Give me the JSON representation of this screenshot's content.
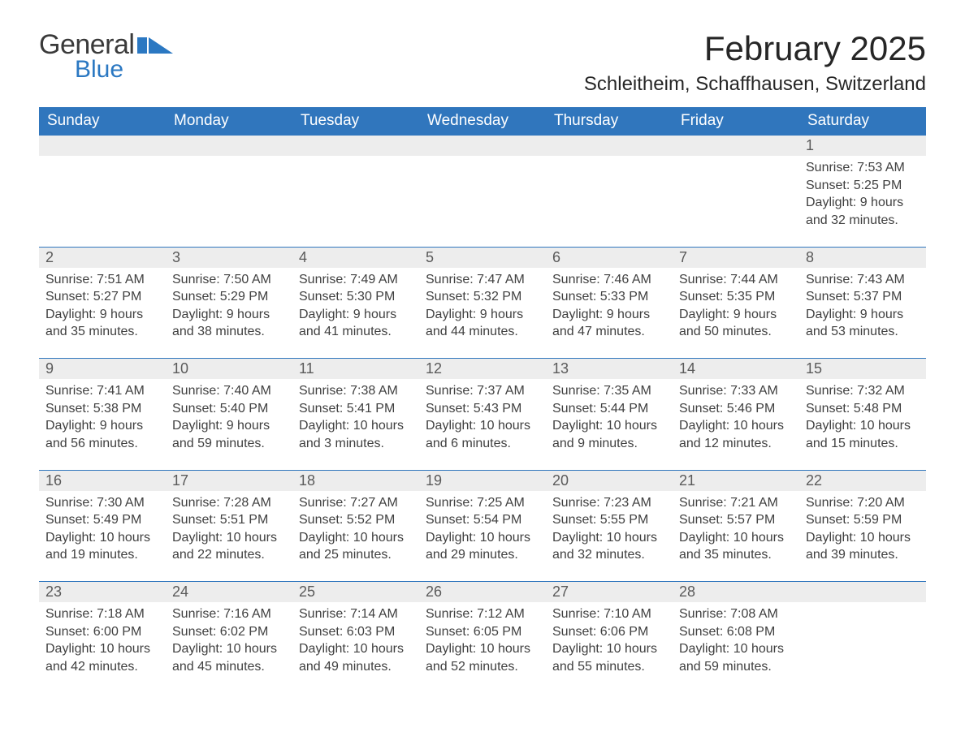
{
  "brand": {
    "general": "General",
    "blue": "Blue",
    "mark_color": "#2b78c2"
  },
  "title": "February 2025",
  "location": "Schleitheim, Schaffhausen, Switzerland",
  "colors": {
    "header_bg": "#3076bd",
    "header_fg": "#ffffff",
    "daynum_bg": "#ededed",
    "daynum_fg": "#5a5a5a",
    "text": "#404040",
    "rule": "#3076bd"
  },
  "typography": {
    "title_fontsize": 42,
    "location_fontsize": 24,
    "dow_fontsize": 19,
    "cell_fontsize": 16
  },
  "days_of_week": [
    "Sunday",
    "Monday",
    "Tuesday",
    "Wednesday",
    "Thursday",
    "Friday",
    "Saturday"
  ],
  "labels": {
    "sunrise": "Sunrise:",
    "sunset": "Sunset:",
    "daylight": "Daylight:"
  },
  "weeks": [
    [
      null,
      null,
      null,
      null,
      null,
      null,
      {
        "n": "1",
        "sunrise": "7:53 AM",
        "sunset": "5:25 PM",
        "dl1": "9 hours",
        "dl2": "and 32 minutes."
      }
    ],
    [
      {
        "n": "2",
        "sunrise": "7:51 AM",
        "sunset": "5:27 PM",
        "dl1": "9 hours",
        "dl2": "and 35 minutes."
      },
      {
        "n": "3",
        "sunrise": "7:50 AM",
        "sunset": "5:29 PM",
        "dl1": "9 hours",
        "dl2": "and 38 minutes."
      },
      {
        "n": "4",
        "sunrise": "7:49 AM",
        "sunset": "5:30 PM",
        "dl1": "9 hours",
        "dl2": "and 41 minutes."
      },
      {
        "n": "5",
        "sunrise": "7:47 AM",
        "sunset": "5:32 PM",
        "dl1": "9 hours",
        "dl2": "and 44 minutes."
      },
      {
        "n": "6",
        "sunrise": "7:46 AM",
        "sunset": "5:33 PM",
        "dl1": "9 hours",
        "dl2": "and 47 minutes."
      },
      {
        "n": "7",
        "sunrise": "7:44 AM",
        "sunset": "5:35 PM",
        "dl1": "9 hours",
        "dl2": "and 50 minutes."
      },
      {
        "n": "8",
        "sunrise": "7:43 AM",
        "sunset": "5:37 PM",
        "dl1": "9 hours",
        "dl2": "and 53 minutes."
      }
    ],
    [
      {
        "n": "9",
        "sunrise": "7:41 AM",
        "sunset": "5:38 PM",
        "dl1": "9 hours",
        "dl2": "and 56 minutes."
      },
      {
        "n": "10",
        "sunrise": "7:40 AM",
        "sunset": "5:40 PM",
        "dl1": "9 hours",
        "dl2": "and 59 minutes."
      },
      {
        "n": "11",
        "sunrise": "7:38 AM",
        "sunset": "5:41 PM",
        "dl1": "10 hours",
        "dl2": "and 3 minutes."
      },
      {
        "n": "12",
        "sunrise": "7:37 AM",
        "sunset": "5:43 PM",
        "dl1": "10 hours",
        "dl2": "and 6 minutes."
      },
      {
        "n": "13",
        "sunrise": "7:35 AM",
        "sunset": "5:44 PM",
        "dl1": "10 hours",
        "dl2": "and 9 minutes."
      },
      {
        "n": "14",
        "sunrise": "7:33 AM",
        "sunset": "5:46 PM",
        "dl1": "10 hours",
        "dl2": "and 12 minutes."
      },
      {
        "n": "15",
        "sunrise": "7:32 AM",
        "sunset": "5:48 PM",
        "dl1": "10 hours",
        "dl2": "and 15 minutes."
      }
    ],
    [
      {
        "n": "16",
        "sunrise": "7:30 AM",
        "sunset": "5:49 PM",
        "dl1": "10 hours",
        "dl2": "and 19 minutes."
      },
      {
        "n": "17",
        "sunrise": "7:28 AM",
        "sunset": "5:51 PM",
        "dl1": "10 hours",
        "dl2": "and 22 minutes."
      },
      {
        "n": "18",
        "sunrise": "7:27 AM",
        "sunset": "5:52 PM",
        "dl1": "10 hours",
        "dl2": "and 25 minutes."
      },
      {
        "n": "19",
        "sunrise": "7:25 AM",
        "sunset": "5:54 PM",
        "dl1": "10 hours",
        "dl2": "and 29 minutes."
      },
      {
        "n": "20",
        "sunrise": "7:23 AM",
        "sunset": "5:55 PM",
        "dl1": "10 hours",
        "dl2": "and 32 minutes."
      },
      {
        "n": "21",
        "sunrise": "7:21 AM",
        "sunset": "5:57 PM",
        "dl1": "10 hours",
        "dl2": "and 35 minutes."
      },
      {
        "n": "22",
        "sunrise": "7:20 AM",
        "sunset": "5:59 PM",
        "dl1": "10 hours",
        "dl2": "and 39 minutes."
      }
    ],
    [
      {
        "n": "23",
        "sunrise": "7:18 AM",
        "sunset": "6:00 PM",
        "dl1": "10 hours",
        "dl2": "and 42 minutes."
      },
      {
        "n": "24",
        "sunrise": "7:16 AM",
        "sunset": "6:02 PM",
        "dl1": "10 hours",
        "dl2": "and 45 minutes."
      },
      {
        "n": "25",
        "sunrise": "7:14 AM",
        "sunset": "6:03 PM",
        "dl1": "10 hours",
        "dl2": "and 49 minutes."
      },
      {
        "n": "26",
        "sunrise": "7:12 AM",
        "sunset": "6:05 PM",
        "dl1": "10 hours",
        "dl2": "and 52 minutes."
      },
      {
        "n": "27",
        "sunrise": "7:10 AM",
        "sunset": "6:06 PM",
        "dl1": "10 hours",
        "dl2": "and 55 minutes."
      },
      {
        "n": "28",
        "sunrise": "7:08 AM",
        "sunset": "6:08 PM",
        "dl1": "10 hours",
        "dl2": "and 59 minutes."
      },
      null
    ]
  ]
}
